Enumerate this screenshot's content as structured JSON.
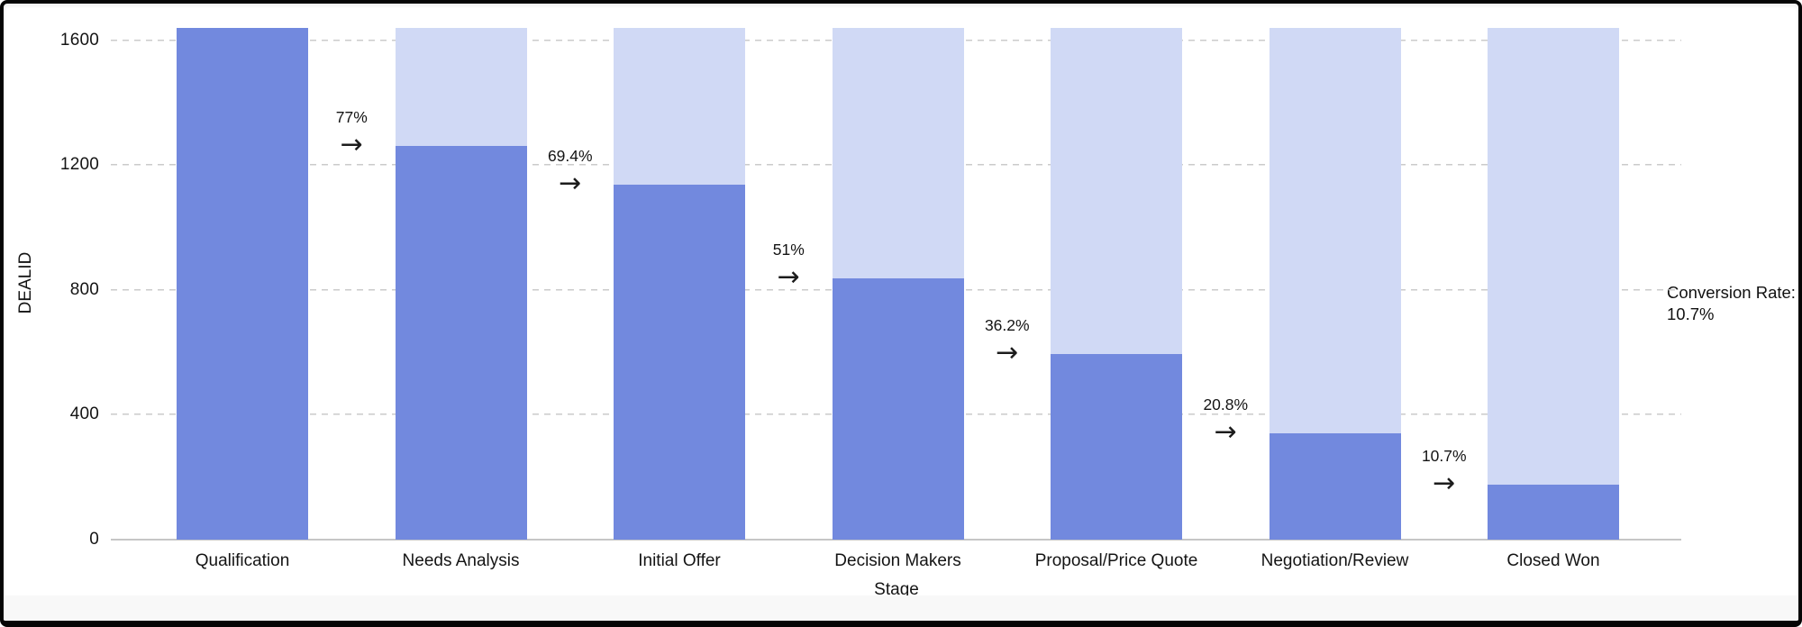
{
  "chart": {
    "ylabel": "DEALID",
    "xlabel": "Stage",
    "note_line1": "Conversion Rate:",
    "note_line2": "10.7%"
  },
  "chart_data": {
    "type": "bar",
    "subtype": "funnel",
    "title": "",
    "xlabel": "Stage",
    "ylabel": "DEALID",
    "categories": [
      "Qualification",
      "Needs Analysis",
      "Initial Offer",
      "Decision Makers",
      "Proposal/Price Quote",
      "Negotiation/Review",
      "Closed Won"
    ],
    "series": [
      {
        "name": "deals-in-stage",
        "values": [
          1640,
          1263,
          1138,
          836,
          594,
          341,
          175
        ]
      },
      {
        "name": "initial-total-background",
        "values": [
          1640,
          1640,
          1640,
          1640,
          1640,
          1640,
          1640
        ]
      }
    ],
    "stage_conversion_labels": [
      "77%",
      "69.4%",
      "51%",
      "36.2%",
      "20.8%",
      "10.7%"
    ],
    "overall_conversion_note": "Conversion Rate: 10.7%",
    "yticks": [
      0,
      400,
      800,
      1200,
      1600
    ],
    "ylim": [
      0,
      1640
    ],
    "grid": "horizontal-dashed",
    "legend": "none",
    "colors": {
      "bar": "#7289DE",
      "bar_background": "#D0D9F5",
      "gridline": "#cbcbcb",
      "text": "#141414"
    }
  }
}
